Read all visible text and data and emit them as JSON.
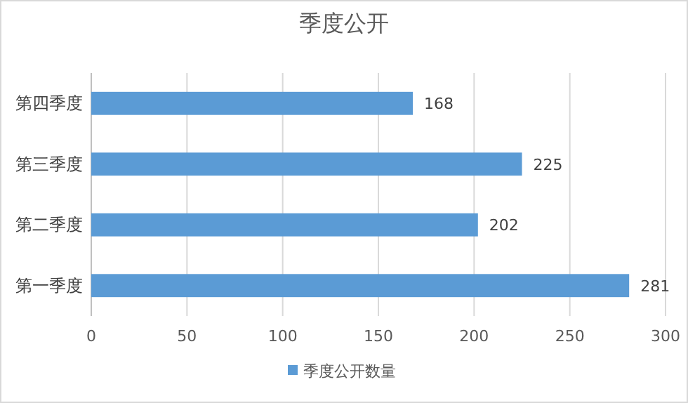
{
  "chart_data": {
    "type": "bar",
    "orientation": "horizontal",
    "title": "季度公开",
    "categories": [
      "第四季度",
      "第三季度",
      "第二季度",
      "第一季度"
    ],
    "series": [
      {
        "name": "季度公开数量",
        "color": "#5b9bd5",
        "values": [
          168,
          225,
          202,
          281
        ]
      }
    ],
    "xlim": [
      0,
      300
    ],
    "xticks": [
      0,
      50,
      100,
      150,
      200,
      250,
      300
    ],
    "grid": "x",
    "legend": "bottom",
    "data_labels": true
  }
}
